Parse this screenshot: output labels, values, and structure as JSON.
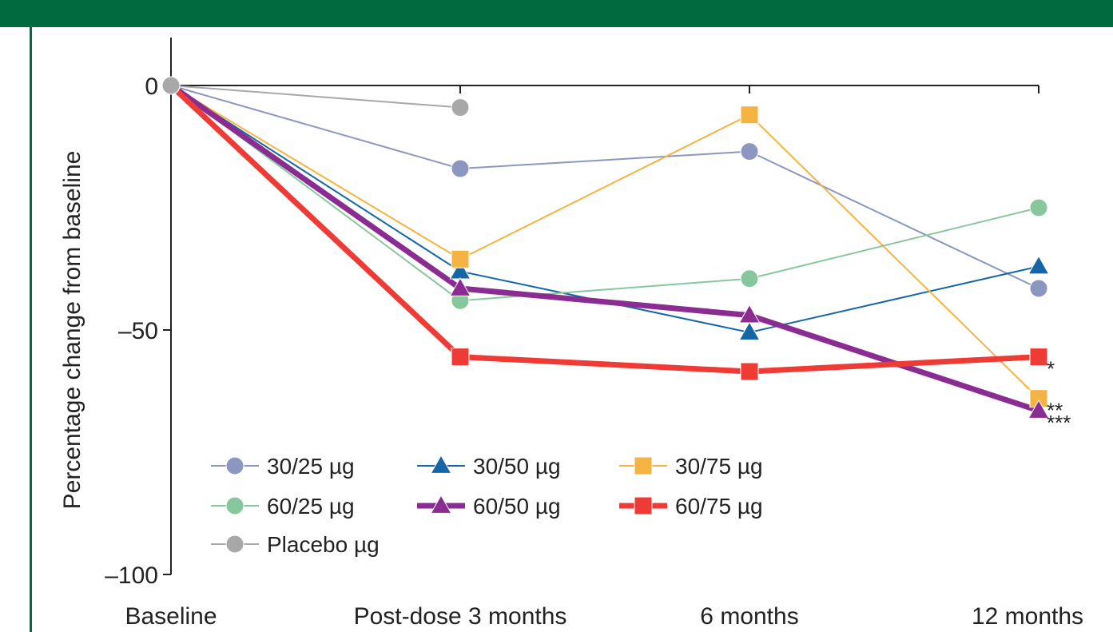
{
  "header": {
    "title": ""
  },
  "chart_data": {
    "type": "line",
    "title": "",
    "xlabel": "",
    "ylabel": "Percentage change from baseline",
    "ylim": [
      -100,
      0
    ],
    "yticks": [
      0,
      -50,
      -100
    ],
    "ytick_labels": [
      "0",
      "–50",
      "–100"
    ],
    "categories": [
      "Baseline",
      "Post-dose 3 months",
      "6 months",
      "12 months"
    ],
    "grid": false,
    "legend_position": "bottom-left",
    "series": [
      {
        "name": "30/25 µg",
        "marker": "circle",
        "color": "#8b97c0",
        "width": 2,
        "values": [
          0,
          -17,
          -13.5,
          -41.5
        ]
      },
      {
        "name": "30/50 µg",
        "marker": "triangle",
        "color": "#1466a6",
        "width": 2,
        "values": [
          0,
          -38,
          -50.5,
          -37
        ]
      },
      {
        "name": "30/75 µg",
        "marker": "square",
        "color": "#f5b342",
        "width": 2,
        "values": [
          0,
          -35.5,
          -6,
          -64
        ]
      },
      {
        "name": "60/25 µg",
        "marker": "circle",
        "color": "#86c79c",
        "width": 2,
        "values": [
          0,
          -44,
          -39.5,
          -25
        ]
      },
      {
        "name": "60/50 µg",
        "marker": "triangle",
        "color": "#8a2c91",
        "width": 7,
        "values": [
          0,
          -41.5,
          -47,
          -66.5
        ]
      },
      {
        "name": "60/75 µg",
        "marker": "square",
        "color": "#ef3b36",
        "width": 7,
        "values": [
          0,
          -55.5,
          -58.5,
          -55.5
        ]
      },
      {
        "name": "Placebo µg",
        "marker": "circle",
        "color": "#a8a8a8",
        "width": 2,
        "values": [
          0,
          -4.5,
          null,
          null
        ]
      }
    ],
    "annotations": [
      {
        "text": "*",
        "series": "60/75 µg",
        "at": "12 months"
      },
      {
        "text": "**",
        "series": "30/75 µg",
        "at": "12 months"
      },
      {
        "text": "***",
        "series": "60/50 µg",
        "at": "12 months"
      }
    ]
  }
}
